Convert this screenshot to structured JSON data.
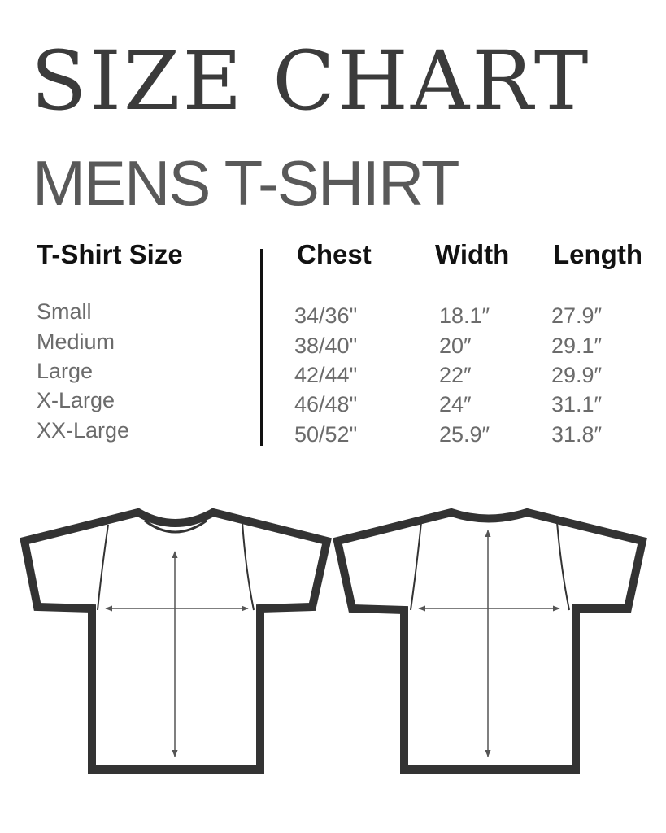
{
  "title": "SIZE CHART",
  "subtitle": "MENS T-SHIRT",
  "table": {
    "headers": [
      "T-Shirt Size",
      "Chest",
      "Width",
      "Length"
    ],
    "rows": [
      [
        "Small",
        "34/36\"",
        "18.1″",
        "27.9″"
      ],
      [
        "Medium",
        "38/40\"",
        "20″",
        "29.1″"
      ],
      [
        "Large",
        "42/44\"",
        "22″",
        "29.9″"
      ],
      [
        "X-Large",
        "46/48\"",
        "24″",
        "31.1″"
      ],
      [
        "XX-Large",
        "50/52\"",
        "25.9″",
        "31.8″"
      ]
    ]
  },
  "colors": {
    "title": "#3b3b3b",
    "outline": "#333333",
    "text": "#6b6b6b"
  },
  "illustrations": [
    "tshirt-front-icon",
    "tshirt-back-icon"
  ]
}
